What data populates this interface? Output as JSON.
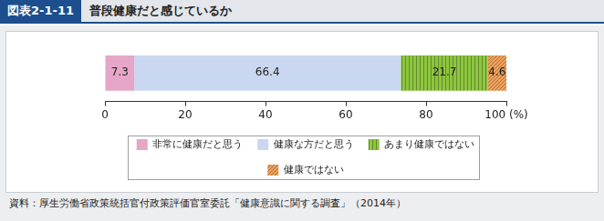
{
  "chart_data": {
    "type": "bar",
    "figure_number": "図表2-1-11",
    "title": "普段健康だと感じているか",
    "source": "資料：厚生労働省政策統括官付政策評価官室委託「健康意識に関する調査」（2014年）",
    "orientation": "horizontal",
    "stacked": true,
    "data_labels": true,
    "grid": false,
    "legend": "bottom",
    "tick_labels": "x",
    "categories": [
      null
    ],
    "series": [
      {
        "name": "非常に健康だと思う",
        "color": "#e6a6c7",
        "values": [
          7.3
        ]
      },
      {
        "name": "健康な方だと思う",
        "color": "#c9d7f0",
        "values": [
          66.4
        ]
      },
      {
        "name": "あまり健康ではない",
        "color": "#8dc63f",
        "values": [
          21.7
        ]
      },
      {
        "name": "健康ではない",
        "color": "#f0a15a",
        "values": [
          4.6
        ]
      }
    ],
    "xlim": [
      0,
      100
    ],
    "xticks": [
      0,
      20,
      40,
      60,
      80,
      {
        "value": 100,
        "label": "100 (%)"
      }
    ]
  }
}
